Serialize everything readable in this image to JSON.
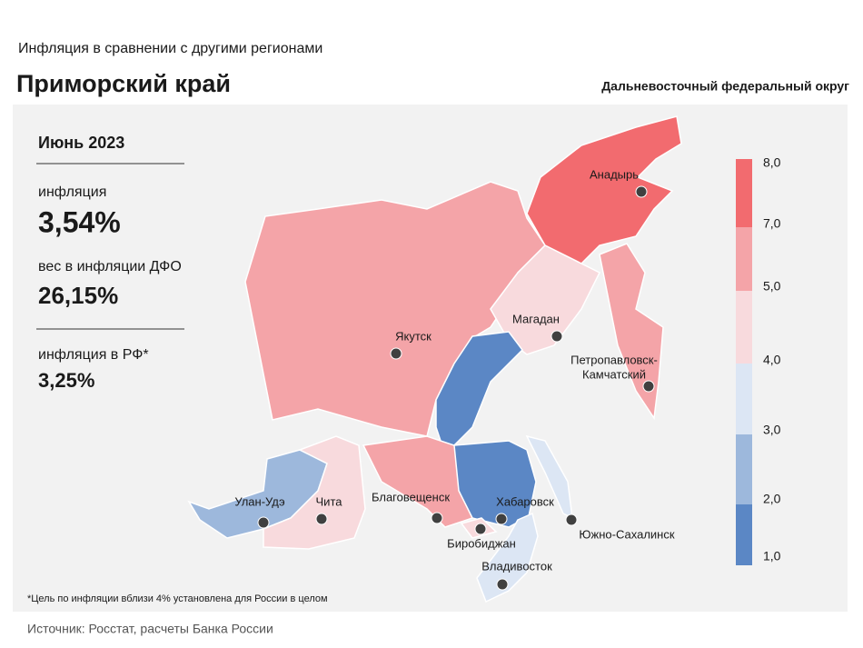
{
  "header": {
    "subtitle": "Инфляция в сравнении с другими регионами",
    "title": "Приморский край",
    "district": "Дальневосточный федеральный округ"
  },
  "panel": {
    "period": "Июнь 2023",
    "inflation_label": "инфляция",
    "inflation_value": "3,54%",
    "weight_label": "вес в инфляции ДФО",
    "weight_value": "26,15%",
    "rf_label": "инфляция в РФ*",
    "rf_value": "3,25%"
  },
  "legend": {
    "band_colors": [
      "#5b87c5",
      "#9db8dc",
      "#dce6f4",
      "#f8dadd",
      "#f4a4a8",
      "#f26b6f"
    ],
    "ticks": [
      "1,0",
      "2,0",
      "3,0",
      "4,0",
      "5,0",
      "7,0",
      "8,0"
    ]
  },
  "map": {
    "region_colors": [
      "#f26b6f",
      "#f4a4a8",
      "#f8dadd",
      "#f4a4a8",
      "#5b87c5",
      "#f4a4a8",
      "#f8dadd",
      "#dce6f4",
      "#dce6f4",
      "#9db8dc",
      "#f8dadd"
    ],
    "cities": [
      {
        "lines": [
          "Анадырь"
        ]
      },
      {
        "lines": [
          "Магадан"
        ]
      },
      {
        "lines": [
          "Якутск"
        ]
      },
      {
        "lines": [
          "Петропавловск-",
          "Камчатский"
        ]
      },
      {
        "lines": [
          "Улан-Удэ"
        ]
      },
      {
        "lines": [
          "Чита"
        ]
      },
      {
        "lines": [
          "Благовещенск"
        ]
      },
      {
        "lines": [
          "Хабаровск"
        ]
      },
      {
        "lines": [
          "Биробиджан"
        ]
      },
      {
        "lines": [
          "Южно-Сахалинск"
        ]
      },
      {
        "lines": [
          "Владивосток"
        ]
      }
    ]
  },
  "footnote": "*Цель по инфляции вблизи 4% установлена для России в целом",
  "source": "Источник: Росстат, расчеты Банка России"
}
